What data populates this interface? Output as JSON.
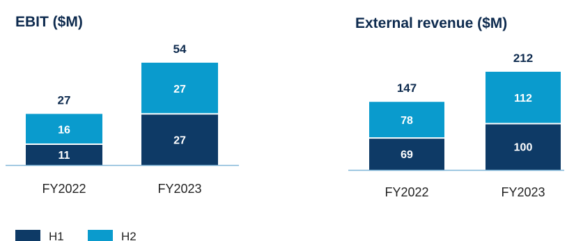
{
  "colors": {
    "h1": "#0e3a66",
    "h2": "#0a9bcd",
    "axis": "#7fb6d8",
    "title": "#0d2a4e"
  },
  "legend": [
    {
      "name": "H1",
      "color_key": "h1"
    },
    {
      "name": "H2",
      "color_key": "h2"
    }
  ],
  "chart_data": [
    {
      "type": "bar",
      "stacked": true,
      "title": "EBIT ($M)",
      "categories": [
        "FY2022",
        "FY2023"
      ],
      "series": [
        {
          "name": "H1",
          "values": [
            11,
            27
          ]
        },
        {
          "name": "H2",
          "values": [
            16,
            27
          ]
        }
      ],
      "totals": [
        27,
        54
      ],
      "ylim": [
        0,
        54
      ]
    },
    {
      "type": "bar",
      "stacked": true,
      "title": "External revenue ($M)",
      "categories": [
        "FY2022",
        "FY2023"
      ],
      "series": [
        {
          "name": "H1",
          "values": [
            69,
            100
          ]
        },
        {
          "name": "H2",
          "values": [
            78,
            112
          ]
        }
      ],
      "totals": [
        147,
        212
      ],
      "ylim": [
        0,
        212
      ]
    }
  ]
}
